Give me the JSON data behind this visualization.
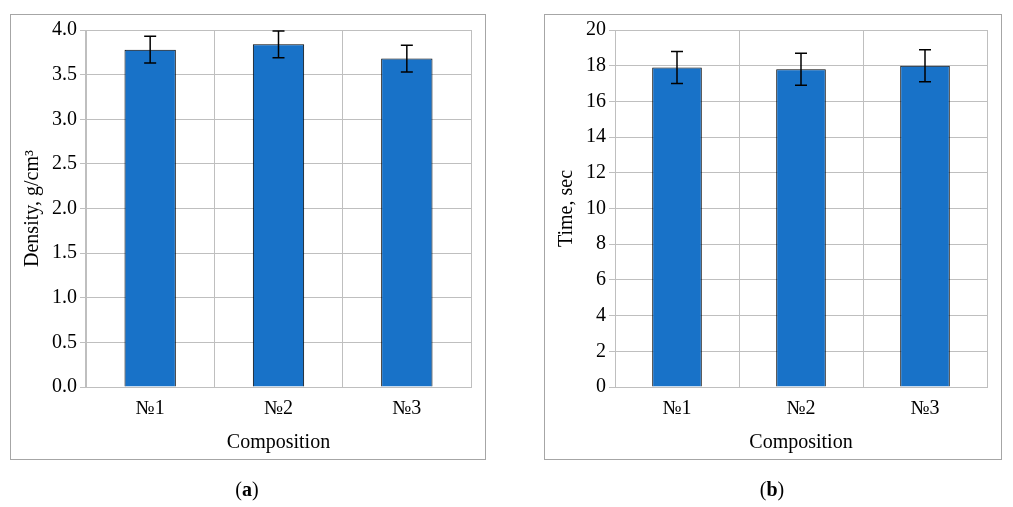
{
  "chart_data": [
    {
      "type": "bar",
      "categories": [
        "№1",
        "№2",
        "№3"
      ],
      "xlabel": "Composition",
      "ylabel": "Density, g/cm³",
      "color": "#1872c8",
      "values": [
        3.78,
        3.84,
        3.68
      ],
      "errors": [
        0.15,
        0.15,
        0.15
      ],
      "ylim": [
        0,
        4
      ],
      "yticks": [
        {
          "value": 0,
          "label": "0.0"
        },
        {
          "value": 0.5,
          "label": "0.5"
        },
        {
          "value": 1,
          "label": "1.0"
        },
        {
          "value": 1.5,
          "label": "1.5"
        },
        {
          "value": 2,
          "label": "2.0"
        },
        {
          "value": 2.5,
          "label": "2.5"
        },
        {
          "value": 3,
          "label": "3.0"
        },
        {
          "value": 3.5,
          "label": "3.5"
        },
        {
          "value": 4,
          "label": "4.0"
        }
      ],
      "grid": true,
      "annotations": [
        "(a)"
      ]
    },
    {
      "type": "bar",
      "categories": [
        "№1",
        "№2",
        "№3"
      ],
      "xlabel": "Composition",
      "ylabel": "Time, sec",
      "color": "#1872c8",
      "values": [
        17.9,
        17.8,
        18.0
      ],
      "errors": [
        0.9,
        0.9,
        0.9
      ],
      "ylim": [
        0,
        20
      ],
      "yticks": [
        0,
        2,
        4,
        6,
        8,
        10,
        12,
        14,
        16,
        18,
        20
      ],
      "grid": true,
      "annotations": [
        "(b)"
      ]
    }
  ]
}
